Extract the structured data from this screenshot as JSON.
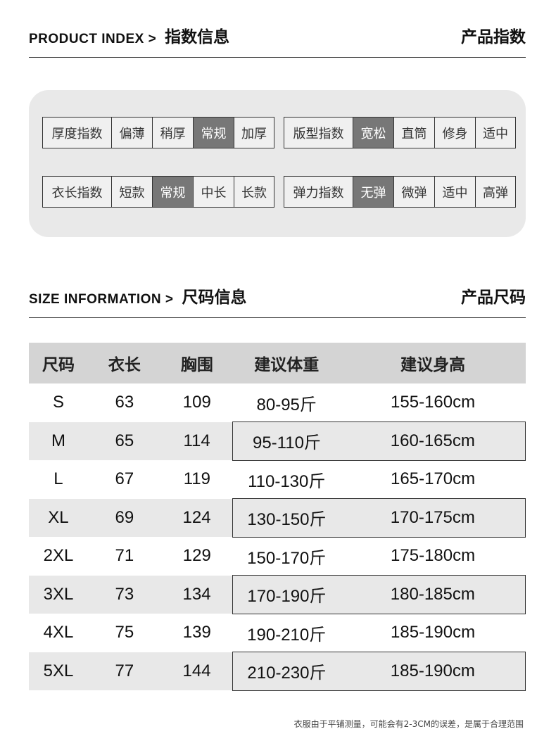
{
  "product_index": {
    "title_en": "PRODUCT INDEX >",
    "title_cn": "指数信息",
    "right": "产品指数",
    "groups": [
      {
        "label": "厚度指数",
        "options": [
          "偏薄",
          "稍厚",
          "常规",
          "加厚"
        ],
        "selected": "常规"
      },
      {
        "label": "版型指数",
        "options": [
          "宽松",
          "直筒",
          "修身",
          "适中"
        ],
        "selected": "宽松"
      },
      {
        "label": "衣长指数",
        "options": [
          "短款",
          "常规",
          "中长",
          "长款"
        ],
        "selected": "常规"
      },
      {
        "label": "弹力指数",
        "options": [
          "无弹",
          "微弹",
          "适中",
          "高弹"
        ],
        "selected": "无弹"
      }
    ]
  },
  "size_info": {
    "title_en": "SIZE INFORMATION >",
    "title_cn": "尺码信息",
    "right": "产品尺码",
    "headers": [
      "尺码",
      "衣长",
      "胸围",
      "建议体重",
      "建议身高"
    ],
    "rows": [
      [
        "S",
        "63",
        "109",
        "80-95斤",
        "155-160cm"
      ],
      [
        "M",
        "65",
        "114",
        "95-110斤",
        "160-165cm"
      ],
      [
        "L",
        "67",
        "119",
        "110-130斤",
        "165-170cm"
      ],
      [
        "XL",
        "69",
        "124",
        "130-150斤",
        "170-175cm"
      ],
      [
        "2XL",
        "71",
        "129",
        "150-170斤",
        "175-180cm"
      ],
      [
        "3XL",
        "73",
        "134",
        "170-190斤",
        "180-185cm"
      ],
      [
        "4XL",
        "75",
        "139",
        "190-210斤",
        "185-190cm"
      ],
      [
        "5XL",
        "77",
        "144",
        "210-230斤",
        "185-190cm"
      ]
    ]
  },
  "note": "衣服由于平铺测量，可能会有2-3CM的误差，是属于合理范围",
  "colors": {
    "selected": "#777777",
    "panel": "#e9e9e9",
    "header": "#d4d4d4",
    "alt_row": "#e8e8e8"
  }
}
